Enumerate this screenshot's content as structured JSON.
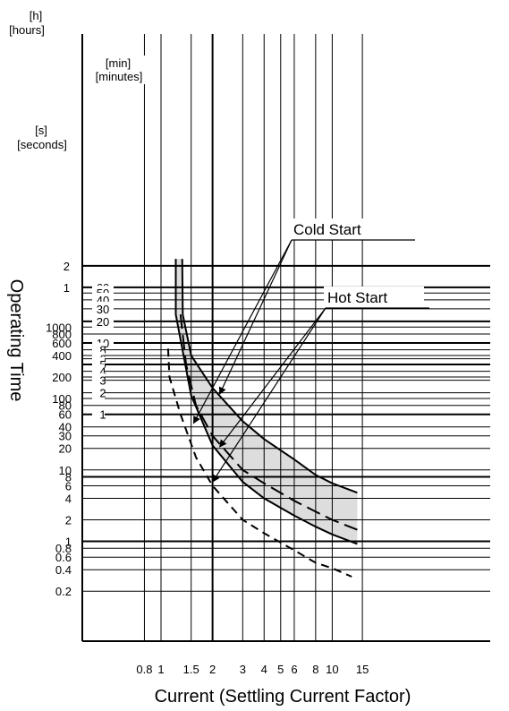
{
  "chart_data": {
    "type": "line",
    "title": "",
    "xlabel": "Current (Settling Current Factor)",
    "ylabel": "Operating Time",
    "x_scale": "log",
    "y_scale": "log",
    "xlim": [
      0.5,
      18
    ],
    "ylim_seconds": [
      0.2,
      9000
    ],
    "grid": true,
    "x_ticks": [
      {
        "label": "0.8",
        "value": 0.8
      },
      {
        "label": "1",
        "value": 1
      },
      {
        "label": "1.5",
        "value": 1.5
      },
      {
        "label": "2",
        "value": 2
      },
      {
        "label": "3",
        "value": 3
      },
      {
        "label": "4",
        "value": 4
      },
      {
        "label": "5",
        "value": 5
      },
      {
        "label": "6",
        "value": 6
      },
      {
        "label": "8",
        "value": 8
      },
      {
        "label": "10",
        "value": 10
      },
      {
        "label": "15",
        "value": 15
      }
    ],
    "y_axes": {
      "hours": {
        "unit_label": [
          "[h]",
          "[hours]"
        ],
        "ticks": [
          {
            "label": "2",
            "seconds": 7200
          },
          {
            "label": "1",
            "seconds": 3600
          }
        ]
      },
      "minutes": {
        "unit_label": [
          "[min]",
          "[minutes]"
        ],
        "ticks": [
          {
            "label": "60",
            "seconds": 3600
          },
          {
            "label": "50",
            "seconds": 3000
          },
          {
            "label": "40",
            "seconds": 2400
          },
          {
            "label": "30",
            "seconds": 1800
          },
          {
            "label": "20",
            "seconds": 1200
          },
          {
            "label": "10",
            "seconds": 600
          },
          {
            "label": "8",
            "seconds": 480
          },
          {
            "label": "6",
            "seconds": 360
          },
          {
            "label": "5",
            "seconds": 300
          },
          {
            "label": "4",
            "seconds": 240
          },
          {
            "label": "3",
            "seconds": 180
          },
          {
            "label": "2",
            "seconds": 120
          },
          {
            "label": "1",
            "seconds": 60
          }
        ]
      },
      "seconds": {
        "unit_label": [
          "[s]",
          "[seconds]"
        ],
        "ticks": [
          {
            "label": "1000",
            "seconds": 1000
          },
          {
            "label": "800",
            "seconds": 800
          },
          {
            "label": "600",
            "seconds": 600
          },
          {
            "label": "400",
            "seconds": 400
          },
          {
            "label": "200",
            "seconds": 200
          },
          {
            "label": "100",
            "seconds": 100
          },
          {
            "label": "80",
            "seconds": 80
          },
          {
            "label": "60",
            "seconds": 60
          },
          {
            "label": "40",
            "seconds": 40
          },
          {
            "label": "30",
            "seconds": 30
          },
          {
            "label": "20",
            "seconds": 20
          },
          {
            "label": "10",
            "seconds": 10
          },
          {
            "label": "8",
            "seconds": 8
          },
          {
            "label": "6",
            "seconds": 6
          },
          {
            "label": "4",
            "seconds": 4
          },
          {
            "label": "2",
            "seconds": 2
          },
          {
            "label": "1",
            "seconds": 1
          },
          {
            "label": "0.8",
            "seconds": 0.8
          },
          {
            "label": "0.6",
            "seconds": 0.6
          },
          {
            "label": "0.4",
            "seconds": 0.4
          },
          {
            "label": "0.2",
            "seconds": 0.2
          }
        ]
      }
    },
    "series": [
      {
        "name": "Cold Start",
        "style": "solid",
        "role": "band upper edge",
        "points": [
          [
            1.33,
            9000
          ],
          [
            1.34,
            1500
          ],
          [
            1.5,
            400
          ],
          [
            2.0,
            140
          ],
          [
            3.0,
            48
          ],
          [
            4.0,
            27
          ],
          [
            6.0,
            14
          ],
          [
            8.0,
            8.5
          ],
          [
            10.0,
            6.5
          ],
          [
            14.0,
            4.8
          ]
        ]
      },
      {
        "name": "Cold Start",
        "style": "solid",
        "role": "band lower edge",
        "points": [
          [
            1.22,
            9000
          ],
          [
            1.22,
            1500
          ],
          [
            1.5,
            110
          ],
          [
            2.0,
            22
          ],
          [
            3.0,
            6.8
          ],
          [
            4.0,
            4.0
          ],
          [
            6.0,
            2.3
          ],
          [
            8.0,
            1.6
          ],
          [
            10.0,
            1.25
          ],
          [
            14.0,
            0.92
          ]
        ]
      },
      {
        "name": "Hot Start",
        "style": "long-dash",
        "points": [
          [
            1.3,
            1500
          ],
          [
            1.4,
            300
          ],
          [
            1.6,
            80
          ],
          [
            2.0,
            30
          ],
          [
            3.0,
            10
          ],
          [
            4.0,
            6.5
          ],
          [
            6.0,
            3.7
          ],
          [
            8.0,
            2.6
          ],
          [
            10.0,
            2.0
          ],
          [
            14.0,
            1.45
          ]
        ]
      },
      {
        "name": "Hot Start",
        "style": "short-dash",
        "points": [
          [
            1.1,
            500
          ],
          [
            1.12,
            200
          ],
          [
            1.3,
            60
          ],
          [
            1.6,
            15
          ],
          [
            2.0,
            6.0
          ],
          [
            3.0,
            2.0
          ],
          [
            4.0,
            1.3
          ],
          [
            6.0,
            0.75
          ],
          [
            8.0,
            0.5
          ],
          [
            10.0,
            0.42
          ],
          [
            13.0,
            0.32
          ]
        ]
      }
    ],
    "band_color": "#dddddd",
    "annotations": {
      "cold_start": {
        "text": "Cold Start",
        "points_to": [
          [
            2.2,
            115
          ],
          [
            1.55,
            45
          ]
        ]
      },
      "hot_start": {
        "text": "Hot Start",
        "points_to": [
          [
            2.2,
            21
          ],
          [
            2.0,
            6.8
          ]
        ]
      }
    }
  }
}
